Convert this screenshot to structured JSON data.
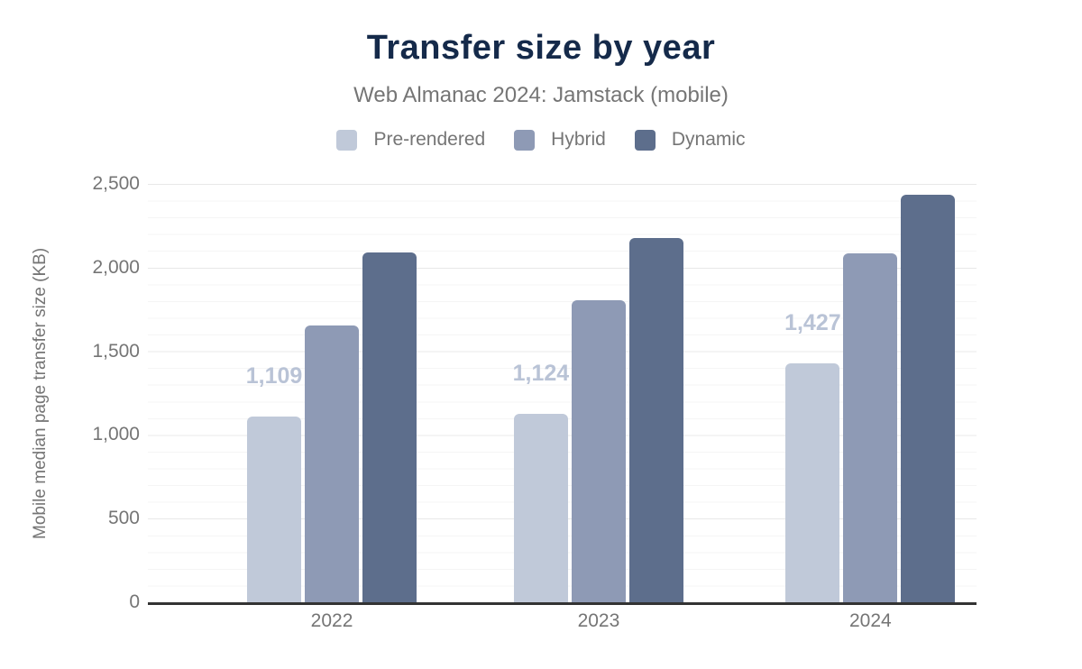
{
  "chart_data": {
    "type": "bar",
    "title": "Transfer size by year",
    "subtitle": "Web Almanac 2024: Jamstack (mobile)",
    "categories": [
      "2022",
      "2023",
      "2024"
    ],
    "series": [
      {
        "name": "Pre-rendered",
        "color": "#c0c9d9",
        "values": [
          1109,
          1124,
          1427
        ],
        "data_labels": [
          "1,109",
          "1,124",
          "1,427"
        ]
      },
      {
        "name": "Hybrid",
        "color": "#8e9ab5",
        "values": [
          1655,
          1805,
          2085
        ]
      },
      {
        "name": "Dynamic",
        "color": "#5d6e8c",
        "values": [
          2090,
          2175,
          2435
        ]
      }
    ],
    "xlabel": "",
    "ylabel": "Mobile median page transfer size (KB)",
    "ylim": [
      0,
      2500
    ],
    "yticks": {
      "values": [
        2500,
        2000,
        1500,
        1000,
        500,
        0
      ],
      "labels": [
        "2,500",
        "2,000",
        "1,500",
        "1,000",
        "500",
        "0"
      ]
    },
    "grid": {
      "major_step": 500,
      "minor_step": 100,
      "major_color": "#e8e8e8",
      "minor_color": "#f5f5f5"
    },
    "legend_position": "top",
    "colors": {
      "title": "#152a4a",
      "text": "#757575",
      "axis_line": "#333333",
      "value_label": "#b9c3d6"
    }
  }
}
